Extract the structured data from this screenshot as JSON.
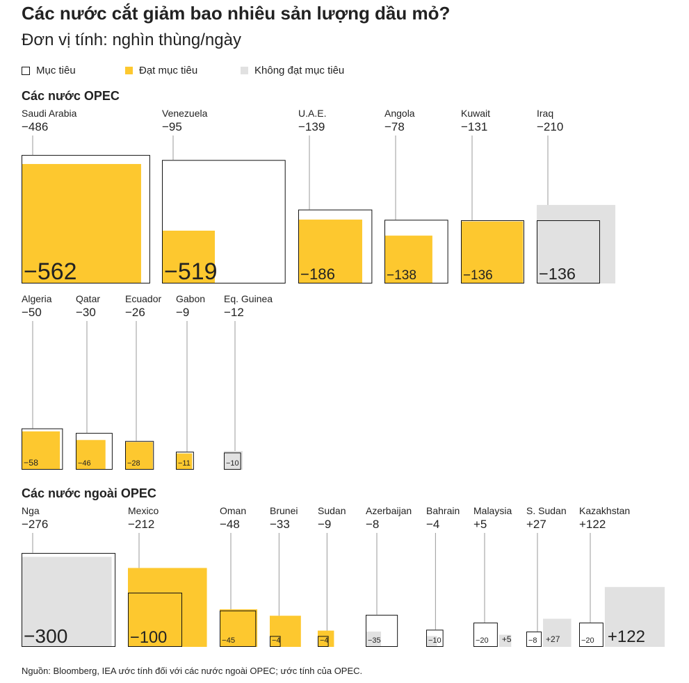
{
  "title": "Các nước cắt giảm bao nhiêu sản lượng dầu mỏ?",
  "subtitle": "Đơn vị tính: nghìn thùng/ngày",
  "legend": {
    "target": "Mục tiêu",
    "met": "Đạt mục tiêu",
    "missed": "Không đạt mục tiêu"
  },
  "colors": {
    "met": "#FDC82F",
    "missed": "#E1E1E1",
    "outline": "#111111",
    "leader": "#999999"
  },
  "sections": {
    "opec": "Các nước OPEC",
    "non_opec": "Các nước ngoài OPEC"
  },
  "source": "Nguồn: Bloomberg, IEA ước tính đối với các nước ngoài OPEC; ước tính của OPEC.",
  "chart_data": {
    "type": "proportional-area squares",
    "value_encoding": "square area proportional to absolute value",
    "series": [
      {
        "name": "Mục tiêu"
      },
      {
        "name": "Đạt mục tiêu"
      },
      {
        "name": "Không đạt mục tiêu"
      }
    ],
    "opec": [
      {
        "country": "Saudi Arabia",
        "target_label": "−562",
        "target": -562,
        "actual_label": "−486",
        "actual": -486,
        "status": "met"
      },
      {
        "country": "Venezuela",
        "target_label": "−519",
        "target": -519,
        "actual_label": "−95",
        "actual": -95,
        "status": "met"
      },
      {
        "country": "U.A.E.",
        "target_label": "−186",
        "target": -186,
        "actual_label": "−139",
        "actual": -139,
        "status": "met"
      },
      {
        "country": "Angola",
        "target_label": "−138",
        "target": -138,
        "actual_label": "−78",
        "actual": -78,
        "status": "met"
      },
      {
        "country": "Kuwait",
        "target_label": "−136",
        "target": -136,
        "actual_label": "−131",
        "actual": -131,
        "status": "met"
      },
      {
        "country": "Iraq",
        "target_label": "−136",
        "target": -136,
        "actual_label": "−210",
        "actual": -210,
        "status": "missed"
      },
      {
        "country": "Algeria",
        "target_label": "−58",
        "target": -58,
        "actual_label": "−50",
        "actual": -50,
        "status": "met"
      },
      {
        "country": "Qatar",
        "target_label": "−46",
        "target": -46,
        "actual_label": "−30",
        "actual": -30,
        "status": "met"
      },
      {
        "country": "Ecuador",
        "target_label": "−28",
        "target": -28,
        "actual_label": "−26",
        "actual": -26,
        "status": "met"
      },
      {
        "country": "Gabon",
        "target_label": "−11",
        "target": -11,
        "actual_label": "−9",
        "actual": -9,
        "status": "met"
      },
      {
        "country": "Eq. Guinea",
        "target_label": "−10",
        "target": -10,
        "actual_label": "−12",
        "actual": -12,
        "status": "missed"
      }
    ],
    "non_opec": [
      {
        "country": "Nga",
        "target_label": "−300",
        "target": -300,
        "actual_label": "−276",
        "actual": -276,
        "status": "missed"
      },
      {
        "country": "Mexico",
        "target_label": "−100",
        "target": -100,
        "actual_label": "−212",
        "actual": -212,
        "status": "met"
      },
      {
        "country": "Oman",
        "target_label": "−45",
        "target": -45,
        "actual_label": "−48",
        "actual": -48,
        "status": "met"
      },
      {
        "country": "Brunei",
        "target_label": "−4",
        "target": -4,
        "actual_label": "−33",
        "actual": -33,
        "status": "met"
      },
      {
        "country": "Sudan",
        "target_label": "−4",
        "target": -4,
        "actual_label": "−9",
        "actual": -9,
        "status": "met"
      },
      {
        "country": "Azerbaijan",
        "target_label": "−35",
        "target": -35,
        "actual_label": "−8",
        "actual": -8,
        "status": "missed"
      },
      {
        "country": "Bahrain",
        "target_label": "−10",
        "target": -10,
        "actual_label": "−4",
        "actual": -4,
        "status": "missed"
      },
      {
        "country": "Malaysia",
        "target_label": "−20",
        "target": -20,
        "actual_label": "+5",
        "actual": 5,
        "status": "missed"
      },
      {
        "country": "S. Sudan",
        "target_label": "−8",
        "target": -8,
        "actual_label": "+27",
        "actual": 27,
        "status": "missed"
      },
      {
        "country": "Kazakhstan",
        "target_label": "−20",
        "target": -20,
        "actual_label": "+122",
        "actual": 122,
        "status": "missed"
      }
    ]
  }
}
